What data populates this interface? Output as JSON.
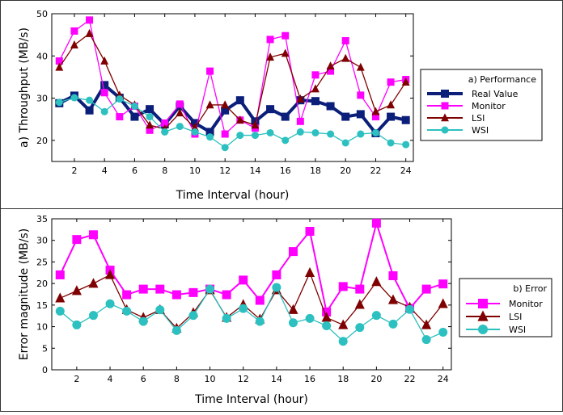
{
  "chart_data": [
    {
      "type": "line",
      "xlabel": "Time Interval (hour)",
      "ylabel": "a) Throughput (MB/s)",
      "xlim": [
        0.5,
        24.5
      ],
      "ylim": [
        15,
        50
      ],
      "xticks": [
        2,
        4,
        6,
        8,
        10,
        12,
        14,
        16,
        18,
        20,
        22,
        24
      ],
      "yticks": [
        20,
        30,
        40,
        50
      ],
      "legend_title": "a) Performance",
      "legend_position": "right",
      "x": [
        1,
        2,
        3,
        4,
        5,
        6,
        7,
        8,
        9,
        10,
        11,
        12,
        13,
        14,
        15,
        16,
        17,
        18,
        19,
        20,
        21,
        22,
        23,
        24
      ],
      "series": [
        {
          "name": "Real Value",
          "color": "#0b1f7a",
          "marker": "square",
          "values": [
            28.8,
            30.6,
            27.1,
            33.1,
            30.1,
            25.6,
            27.4,
            23.8,
            28.1,
            24.1,
            22.0,
            27.1,
            29.5,
            24.5,
            27.4,
            25.6,
            29.5,
            29.3,
            28.1,
            25.6,
            26.2,
            21.7,
            25.6,
            24.8
          ]
        },
        {
          "name": "Monitor",
          "color": "#ff00ff",
          "marker": "square",
          "values": [
            38.8,
            45.9,
            48.5,
            31.3,
            25.6,
            28.1,
            22.4,
            24.1,
            28.6,
            21.5,
            36.4,
            21.5,
            24.8,
            22.9,
            43.9,
            44.8,
            24.5,
            35.5,
            36.4,
            43.6,
            30.7,
            25.6,
            33.8,
            34.4
          ]
        },
        {
          "name": "LSI",
          "color": "#7f0000",
          "marker": "triangle",
          "values": [
            37.3,
            42.6,
            45.3,
            38.8,
            30.7,
            28.4,
            23.6,
            22.7,
            26.5,
            23.0,
            28.4,
            28.4,
            24.8,
            23.6,
            39.7,
            40.6,
            29.8,
            32.2,
            37.6,
            39.4,
            37.3,
            26.8,
            28.4,
            33.8
          ]
        },
        {
          "name": "WSI",
          "color": "#2cc0c0",
          "marker": "circle",
          "values": [
            29.0,
            30.1,
            29.5,
            26.8,
            29.8,
            28.1,
            25.6,
            22.0,
            23.3,
            22.0,
            20.8,
            18.3,
            21.2,
            21.2,
            21.8,
            20.0,
            22.0,
            21.8,
            21.5,
            19.4,
            21.5,
            21.8,
            19.4,
            19.0
          ]
        }
      ]
    },
    {
      "type": "line",
      "xlabel": "Time Interval (hour)",
      "ylabel": "Error magnitude (MB/s)",
      "xlim": [
        0.5,
        24.5
      ],
      "ylim": [
        0,
        35
      ],
      "xticks": [
        2,
        4,
        6,
        8,
        10,
        12,
        14,
        16,
        18,
        20,
        22,
        24
      ],
      "yticks": [
        0,
        5,
        10,
        15,
        20,
        25,
        30,
        35
      ],
      "legend_title": "b) Error",
      "legend_position": "right",
      "x": [
        1,
        2,
        3,
        4,
        5,
        6,
        7,
        8,
        9,
        10,
        11,
        12,
        13,
        14,
        15,
        16,
        17,
        18,
        19,
        20,
        21,
        22,
        23,
        24
      ],
      "series": [
        {
          "name": "Monitor",
          "color": "#ff00ff",
          "marker": "square",
          "values": [
            22.0,
            30.2,
            31.3,
            23.1,
            17.4,
            18.7,
            18.7,
            17.4,
            17.9,
            18.7,
            17.4,
            20.8,
            16.1,
            22.0,
            27.4,
            32.1,
            13.4,
            19.3,
            18.7,
            34.0,
            21.8,
            14.2,
            18.7,
            19.9
          ]
        },
        {
          "name": "LSI",
          "color": "#7f0000",
          "marker": "triangle",
          "values": [
            16.6,
            18.3,
            20.0,
            22.0,
            13.9,
            12.1,
            13.9,
            9.6,
            13.2,
            18.5,
            12.1,
            15.1,
            11.7,
            18.5,
            13.9,
            22.5,
            12.1,
            10.4,
            15.1,
            20.4,
            16.2,
            14.5,
            10.4,
            15.3
          ]
        },
        {
          "name": "WSI",
          "color": "#2cc0c0",
          "marker": "circle",
          "values": [
            13.6,
            10.4,
            12.6,
            15.3,
            13.6,
            11.2,
            13.9,
            9.1,
            12.6,
            18.7,
            11.9,
            14.2,
            11.2,
            19.1,
            10.9,
            11.9,
            10.2,
            6.6,
            9.8,
            12.6,
            10.6,
            14.0,
            7.0,
            8.7
          ]
        }
      ]
    }
  ]
}
